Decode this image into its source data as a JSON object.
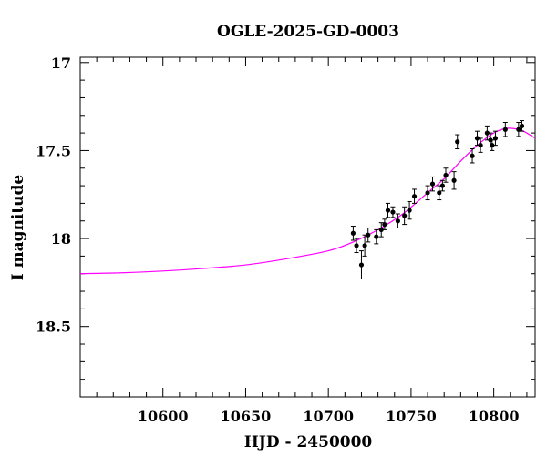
{
  "chart_data": {
    "type": "scatter",
    "title": "OGLE-2025-GD-0003",
    "xlabel": "HJD - 2450000",
    "ylabel": "I magnitude",
    "xlim": [
      10550,
      10825
    ],
    "ylim": [
      18.9,
      16.97
    ],
    "y_inverted": true,
    "x_ticks": [
      10600,
      10650,
      10700,
      10750,
      10800
    ],
    "y_ticks": [
      17,
      17.5,
      18,
      18.5
    ],
    "x_tick_labels": [
      "10600",
      "10650",
      "10700",
      "10750",
      "10800"
    ],
    "y_tick_labels": [
      "17",
      "17.5",
      "18",
      "18.5"
    ],
    "grid": false,
    "colors": {
      "points": "#000000",
      "model": "#ff00ff",
      "frame": "#000000"
    },
    "series": [
      {
        "kind": "points_with_errorbars",
        "x": [
          10715,
          10717,
          10720,
          10722,
          10724,
          10729,
          10732,
          10734,
          10736,
          10739,
          10742,
          10746,
          10749,
          10752,
          10760,
          10763,
          10767,
          10769,
          10771,
          10776,
          10778,
          10787,
          10790,
          10792,
          10796,
          10798,
          10799,
          10801,
          10807,
          10815,
          10817
        ],
        "y": [
          17.97,
          18.04,
          18.15,
          18.04,
          17.98,
          17.99,
          17.95,
          17.92,
          17.84,
          17.85,
          17.9,
          17.87,
          17.84,
          17.76,
          17.74,
          17.69,
          17.74,
          17.7,
          17.64,
          17.67,
          17.45,
          17.53,
          17.43,
          17.47,
          17.4,
          17.44,
          17.47,
          17.43,
          17.38,
          17.38,
          17.36
        ],
        "err": [
          0.04,
          0.04,
          0.08,
          0.06,
          0.04,
          0.04,
          0.04,
          0.03,
          0.04,
          0.03,
          0.04,
          0.05,
          0.05,
          0.04,
          0.04,
          0.04,
          0.04,
          0.03,
          0.04,
          0.05,
          0.04,
          0.04,
          0.04,
          0.04,
          0.04,
          0.04,
          0.03,
          0.04,
          0.04,
          0.04,
          0.03
        ]
      },
      {
        "kind": "model_curve",
        "x": [
          10550,
          10575,
          10600,
          10625,
          10650,
          10675,
          10700,
          10715,
          10730,
          10745,
          10760,
          10770,
          10780,
          10790,
          10800,
          10807,
          10812,
          10818,
          10825
        ],
        "y": [
          18.2,
          18.195,
          18.185,
          18.17,
          18.15,
          18.115,
          18.07,
          18.02,
          17.95,
          17.86,
          17.74,
          17.66,
          17.56,
          17.47,
          17.4,
          17.375,
          17.375,
          17.39,
          17.43
        ]
      }
    ]
  }
}
